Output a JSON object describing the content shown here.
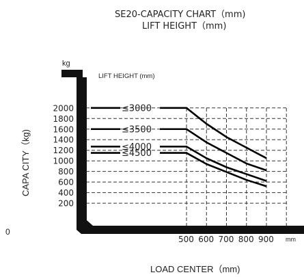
{
  "page": {
    "title_line1": "SE20-CAPACITY CHART（mm)",
    "title_line2": "LIFT HEIGHT（mm)",
    "inner_title": "LIFT HEIGHT (mm)",
    "stray_label": "0"
  },
  "chart_data": {
    "type": "line",
    "title": "SE20-CAPACITY CHART（mm)",
    "subtitle": "LIFT HEIGHT（mm)",
    "xlabel": "LOAD CENTER（mm)",
    "x_unit": "mm",
    "ylabel": "CAPA CITY（kg)",
    "y_unit": "kg",
    "legend_title": "LIFT HEIGHT (mm)",
    "y_ticks": [
      200,
      400,
      600,
      800,
      1000,
      1200,
      1400,
      1600,
      1800,
      2000
    ],
    "x_ticks": [
      500,
      600,
      700,
      800,
      900
    ],
    "ylim": [
      0,
      2200
    ],
    "xlim": [
      0,
      1000
    ],
    "grid": "dashed",
    "series": [
      {
        "name": "≤3000",
        "x": [
          0,
          500,
          600,
          700,
          800,
          900
        ],
        "values": [
          2000,
          2000,
          1700,
          1450,
          1250,
          1050
        ]
      },
      {
        "name": "≤3500",
        "x": [
          0,
          500,
          600,
          700,
          800,
          900
        ],
        "values": [
          1600,
          1600,
          1350,
          1150,
          950,
          820
        ]
      },
      {
        "name": "≤4000",
        "x": [
          0,
          500,
          600,
          700,
          800,
          900
        ],
        "values": [
          1270,
          1270,
          1050,
          880,
          750,
          620
        ]
      },
      {
        "name": "≤4500",
        "x": [
          0,
          500,
          600,
          700,
          800,
          900
        ],
        "values": [
          1150,
          1150,
          940,
          790,
          640,
          520
        ]
      }
    ]
  }
}
